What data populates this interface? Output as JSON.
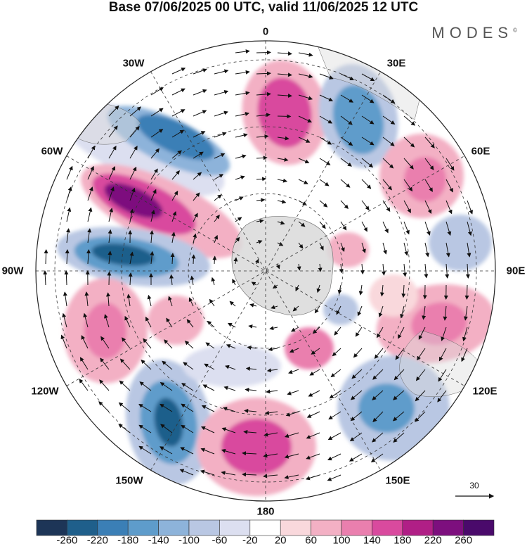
{
  "title": "Base 07/06/2025 00 UTC, valid 11/06/2025 12 UTC",
  "brand": "MODES",
  "brand_mark": "©",
  "longitude_labels": [
    "0",
    "30E",
    "60E",
    "90E",
    "120E",
    "150E",
    "180",
    "150W",
    "120W",
    "90W",
    "60W",
    "30W"
  ],
  "vector_reference": "30",
  "colorbar": {
    "labels": [
      "-260",
      "-220",
      "-180",
      "-140",
      "-100",
      "-60",
      "-20",
      "20",
      "60",
      "100",
      "140",
      "180",
      "220",
      "260"
    ],
    "colors": [
      "#1d3557",
      "#1f5f8b",
      "#3b7fb6",
      "#5e9ccb",
      "#8db3da",
      "#b9c7e3",
      "#dcdff0",
      "#ffffff",
      "#f9d8dc",
      "#f3b0c4",
      "#ea7fae",
      "#d94a9e",
      "#b01f86",
      "#7d0f7e",
      "#4a0a6b"
    ]
  },
  "colors": {
    "land": "#d9d9d9",
    "grid": "#333333",
    "frame": "#222222"
  }
}
